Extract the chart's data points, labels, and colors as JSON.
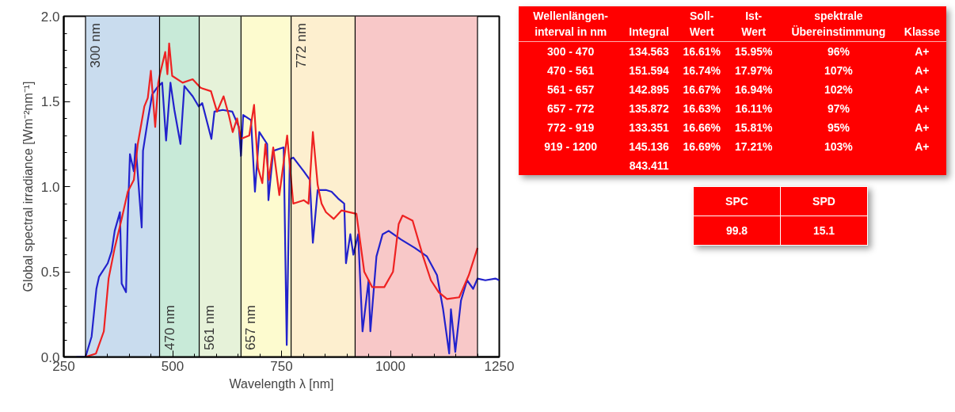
{
  "chart_data": {
    "type": "line",
    "xlabel": "Wavelength λ [nm]",
    "ylabel": "Global spectral irradiance [Wm⁻²nm⁻¹]",
    "xlim": [
      250,
      1250
    ],
    "ylim": [
      0,
      2.0
    ],
    "xticks": [
      250,
      500,
      750,
      1000,
      1250
    ],
    "yticks": [
      {
        "value": 0,
        "label": "0.0"
      },
      {
        "value": 0.5,
        "label": "0.5"
      },
      {
        "value": 1.0,
        "label": "1.0"
      },
      {
        "value": 1.5,
        "label": "1.5"
      },
      {
        "value": 2.0,
        "label": "2.0"
      }
    ],
    "grid": false,
    "bands": [
      {
        "axis": "x",
        "from": 300,
        "to": 470,
        "color": "#c9dcee"
      },
      {
        "axis": "x",
        "from": 470,
        "to": 561,
        "color": "#c8ead8"
      },
      {
        "axis": "x",
        "from": 561,
        "to": 657,
        "color": "#e6f2d9"
      },
      {
        "axis": "x",
        "from": 657,
        "to": 772,
        "color": "#fdfbcf"
      },
      {
        "axis": "x",
        "from": 772,
        "to": 919,
        "color": "#fdefcf"
      },
      {
        "axis": "x",
        "from": 919,
        "to": 1200,
        "color": "#f8c8c8"
      }
    ],
    "ref_lines": [
      {
        "axis": "x",
        "value": 300,
        "label": "300 nm",
        "color": "#000000"
      },
      {
        "axis": "x",
        "value": 470,
        "label": "470 nm",
        "color": "#000000"
      },
      {
        "axis": "x",
        "value": 561,
        "label": "561 nm",
        "color": "#000000"
      },
      {
        "axis": "x",
        "value": 657,
        "label": "657 nm",
        "color": "#000000"
      },
      {
        "axis": "x",
        "value": 772,
        "label": "772 nm",
        "color": "#000000"
      },
      {
        "axis": "x",
        "value": 919,
        "color": "#000000"
      },
      {
        "axis": "x",
        "value": 1200,
        "color": "#000000"
      }
    ],
    "series": [
      {
        "color": "#2222cc",
        "x": [
          279,
          300,
          314,
          325,
          331,
          351,
          360,
          367,
          379,
          383,
          393,
          397,
          402,
          411,
          415,
          429,
          432,
          443,
          453,
          464,
          476,
          485,
          495,
          504,
          518,
          527,
          546,
          560,
          568,
          589,
          596,
          615,
          637,
          652,
          657,
          662,
          680,
          689,
          699,
          717,
          720,
          731,
          755,
          762,
          769,
          777,
          801,
          815,
          822,
          833,
          852,
          865,
          880,
          894,
          898,
          908,
          915,
          926,
          936,
          950,
          954,
          968,
          982,
          996,
          1024,
          1056,
          1084,
          1107,
          1121,
          1135,
          1139,
          1149,
          1162,
          1176,
          1190,
          1200,
          1218,
          1241,
          1250
        ],
        "values": [
          0,
          0,
          0.12,
          0.4,
          0.47,
          0.55,
          0.62,
          0.74,
          0.85,
          0.43,
          0.38,
          0.81,
          1.19,
          1.09,
          1.25,
          0.76,
          1.21,
          1.39,
          1.54,
          1.58,
          1.61,
          1.27,
          1.61,
          1.45,
          1.25,
          1.59,
          1.53,
          1.47,
          1.49,
          1.28,
          1.44,
          1.45,
          1.44,
          1.35,
          1.18,
          1.42,
          1.39,
          0.97,
          1.32,
          1.25,
          0.92,
          1.21,
          1.23,
          0.07,
          1.16,
          1.17,
          1.09,
          1.04,
          0.67,
          0.98,
          0.98,
          0.97,
          0.93,
          0.9,
          0.55,
          0.72,
          0.6,
          0.72,
          0.15,
          0.45,
          0.15,
          0.59,
          0.72,
          0.74,
          0.69,
          0.64,
          0.59,
          0.48,
          0.28,
          0.02,
          0.28,
          0.03,
          0.33,
          0.45,
          0.4,
          0.46,
          0.45,
          0.46,
          0.45
        ]
      },
      {
        "color": "#ee2222",
        "x": [
          300,
          324,
          342,
          353,
          367,
          383,
          397,
          411,
          420,
          435,
          443,
          450,
          460,
          467,
          471,
          483,
          488,
          492,
          499,
          523,
          546,
          564,
          588,
          602,
          617,
          629,
          638,
          648,
          657,
          676,
          687,
          696,
          706,
          713,
          721,
          731,
          745,
          763,
          777,
          801,
          812,
          822,
          833,
          842,
          852,
          870,
          888,
          922,
          940,
          958,
          986,
          1006,
          1019,
          1028,
          1051,
          1075,
          1093,
          1111,
          1130,
          1158,
          1180,
          1200
        ],
        "values": [
          0,
          0.02,
          0.15,
          0.46,
          0.64,
          0.81,
          0.97,
          1.04,
          1.25,
          1.47,
          1.52,
          1.68,
          1.35,
          1.61,
          1.66,
          1.79,
          1.66,
          1.84,
          1.65,
          1.61,
          1.63,
          1.58,
          1.56,
          1.44,
          1.53,
          1.42,
          1.32,
          1.4,
          1.28,
          1.3,
          1.48,
          1.11,
          1.02,
          1.25,
          1.04,
          1.23,
          0.95,
          1.3,
          0.9,
          0.92,
          0.9,
          1.32,
          1.01,
          0.9,
          0.85,
          0.81,
          0.86,
          0.84,
          0.5,
          0.41,
          0.41,
          0.5,
          0.78,
          0.83,
          0.8,
          0.59,
          0.45,
          0.38,
          0.34,
          0.35,
          0.48,
          0.64
        ]
      }
    ],
    "annotations": [
      "Wellenlängen-interval in nm",
      "Integral",
      "Soll-Wert",
      "Ist-Wert",
      "spektrale Übereinstimmung",
      "Klasse",
      "300 - 470",
      "134.563",
      "16.61%",
      "15.95%",
      "96%",
      "A+",
      "470 - 561",
      "151.594",
      "16.74%",
      "17.97%",
      "107%",
      "A+",
      "561 - 657",
      "142.895",
      "16.67%",
      "16.94%",
      "102%",
      "A+",
      "657 - 772",
      "135.872",
      "16.63%",
      "16.11%",
      "97%",
      "A+",
      "772 - 919",
      "133.351",
      "16.66%",
      "15.81%",
      "95%",
      "A+",
      "919 - 1200",
      "145.136",
      "16.69%",
      "17.21%",
      "103%",
      "A+",
      "843.411",
      "SPC",
      "SPD",
      "99.8",
      "15.1"
    ]
  }
}
